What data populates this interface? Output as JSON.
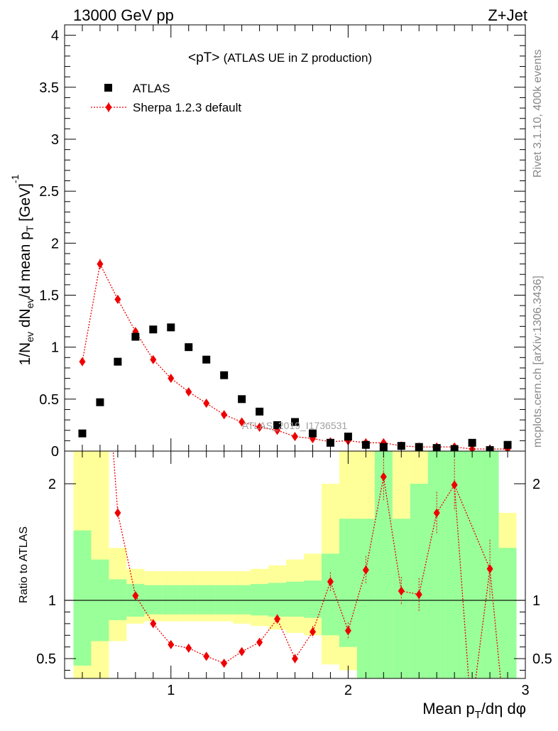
{
  "header": {
    "left": "13000 GeV pp",
    "right": "Z+Jet"
  },
  "side_text": {
    "rivet": "Rivet 3.1.10,  400k events",
    "mcplots": "mcplots.cern.ch [arXiv:1306.3436]"
  },
  "watermark": "ATLAS_2019_I1736531",
  "colors": {
    "mc": "#ee0000",
    "data": "#000000",
    "band_inner": "#99ff99",
    "band_outer": "#ffff99"
  },
  "chart_data": [
    {
      "type": "scatter",
      "title": "<pT> (ATLAS UE in Z production)",
      "xlabel": "",
      "ylabel": "1/N_ev dN_ev/d mean p_T [GeV]^-1",
      "xlim": [
        0.4,
        3.0
      ],
      "ylim": [
        0,
        4.1
      ],
      "yticks": [
        0,
        0.5,
        1,
        1.5,
        2,
        2.5,
        3,
        3.5,
        4
      ],
      "ytick_labels": [
        "0",
        "0.5",
        "1",
        "1.5",
        "2",
        "2.5",
        "3",
        "3.5",
        "4"
      ],
      "xticks": [
        1,
        2,
        3
      ],
      "legend": {
        "position": "top-left",
        "entries": [
          "ATLAS",
          "Sherpa 1.2.3 default"
        ]
      },
      "x": [
        0.5,
        0.6,
        0.7,
        0.8,
        0.9,
        1.0,
        1.1,
        1.2,
        1.3,
        1.4,
        1.5,
        1.6,
        1.7,
        1.8,
        1.9,
        2.0,
        2.1,
        2.2,
        2.3,
        2.4,
        2.5,
        2.6,
        2.7,
        2.8,
        2.9
      ],
      "series": [
        {
          "name": "ATLAS",
          "values": [
            0.17,
            0.47,
            0.86,
            1.1,
            1.17,
            1.19,
            1.0,
            0.88,
            0.73,
            0.5,
            0.38,
            0.25,
            0.28,
            0.17,
            0.08,
            0.14,
            0.06,
            0.04,
            0.05,
            0.04,
            0.03,
            0.02,
            0.08,
            0.01,
            0.06
          ]
        },
        {
          "name": "Sherpa 1.2.3 default",
          "values": [
            0.86,
            1.8,
            1.46,
            1.15,
            0.88,
            0.7,
            0.57,
            0.46,
            0.35,
            0.28,
            0.23,
            0.2,
            0.14,
            0.12,
            0.09,
            0.1,
            0.08,
            0.08,
            0.05,
            0.04,
            0.04,
            0.04,
            0.02,
            0.02,
            0.02
          ],
          "errors": [
            0.03,
            0.05,
            0.04,
            0.03,
            0.02,
            0.02,
            0.02,
            0.02,
            0.01,
            0.01,
            0.01,
            0.01,
            0.01,
            0.01,
            0.01,
            0.01,
            0.01,
            0.01,
            0.01,
            0.01,
            0.01,
            0.01,
            0.01,
            0.01,
            0.01
          ]
        }
      ]
    },
    {
      "type": "line",
      "title": "",
      "xlabel": "Mean p_T/dη dφ",
      "ylabel": "Ratio to ATLAS",
      "xlim": [
        0.4,
        3.0
      ],
      "ylim": [
        0.33,
        2.28
      ],
      "yticks": [
        0.5,
        1,
        2
      ],
      "ytick_labels": [
        "0.5",
        "1",
        "2"
      ],
      "xticks": [
        1,
        2,
        3
      ],
      "xtick_labels": [
        "1",
        "2",
        "3"
      ],
      "reference_line": 1,
      "bands": {
        "x_edges": [
          0.45,
          0.55,
          0.65,
          0.75,
          0.85,
          0.95,
          1.05,
          1.15,
          1.25,
          1.35,
          1.45,
          1.55,
          1.65,
          1.75,
          1.85,
          1.95,
          2.05,
          2.15,
          2.25,
          2.35,
          2.45,
          2.55,
          2.65,
          2.75,
          2.85,
          2.95
        ],
        "inner_low": [
          0.44,
          0.65,
          0.83,
          0.86,
          0.88,
          0.88,
          0.88,
          0.88,
          0.88,
          0.88,
          0.87,
          0.86,
          0.86,
          0.85,
          0.7,
          0.6,
          0.33,
          0.33,
          0.33,
          0.33,
          0.33,
          0.33,
          0.33,
          0.33,
          0.33
        ],
        "inner_high": [
          1.6,
          1.35,
          1.18,
          1.14,
          1.13,
          1.13,
          1.13,
          1.13,
          1.13,
          1.13,
          1.14,
          1.15,
          1.16,
          1.17,
          1.4,
          1.7,
          1.7,
          2.28,
          1.7,
          2.0,
          2.28,
          2.28,
          2.28,
          2.28,
          1.45
        ],
        "outer_low": [
          0.33,
          0.33,
          0.65,
          0.8,
          0.82,
          0.82,
          0.82,
          0.82,
          0.82,
          0.8,
          0.78,
          0.75,
          0.72,
          0.7,
          0.45,
          0.4,
          0.33,
          0.33,
          0.38,
          0.33,
          0.33,
          0.33,
          0.33,
          0.33,
          0.7
        ],
        "outer_high": [
          2.28,
          2.28,
          1.45,
          1.27,
          1.25,
          1.25,
          1.25,
          1.25,
          1.25,
          1.25,
          1.27,
          1.3,
          1.35,
          1.4,
          2.0,
          2.28,
          2.28,
          2.28,
          2.28,
          2.28,
          2.28,
          2.28,
          2.28,
          2.28,
          1.75
        ]
      },
      "series": [
        {
          "name": "Sherpa 1.2.3 default",
          "x": [
            0.6,
            0.7,
            0.8,
            0.9,
            1.0,
            1.1,
            1.2,
            1.3,
            1.4,
            1.5,
            1.6,
            1.7,
            1.8,
            1.9,
            2.0,
            2.1,
            2.2,
            2.3,
            2.4,
            2.5,
            2.6,
            2.8
          ],
          "values": [
            3.8,
            1.75,
            1.04,
            0.8,
            0.62,
            0.59,
            0.52,
            0.46,
            0.56,
            0.64,
            0.84,
            0.5,
            0.73,
            1.16,
            0.74,
            1.26,
            2.06,
            1.08,
            1.05,
            1.75,
            1.99,
            1.27
          ],
          "errors": [
            0.1,
            0.05,
            0.03,
            0.02,
            0.02,
            0.02,
            0.02,
            0.02,
            0.03,
            0.03,
            0.04,
            0.04,
            0.05,
            0.08,
            0.07,
            0.12,
            0.2,
            0.12,
            0.14,
            0.18,
            0.22,
            0.25
          ]
        }
      ]
    }
  ]
}
